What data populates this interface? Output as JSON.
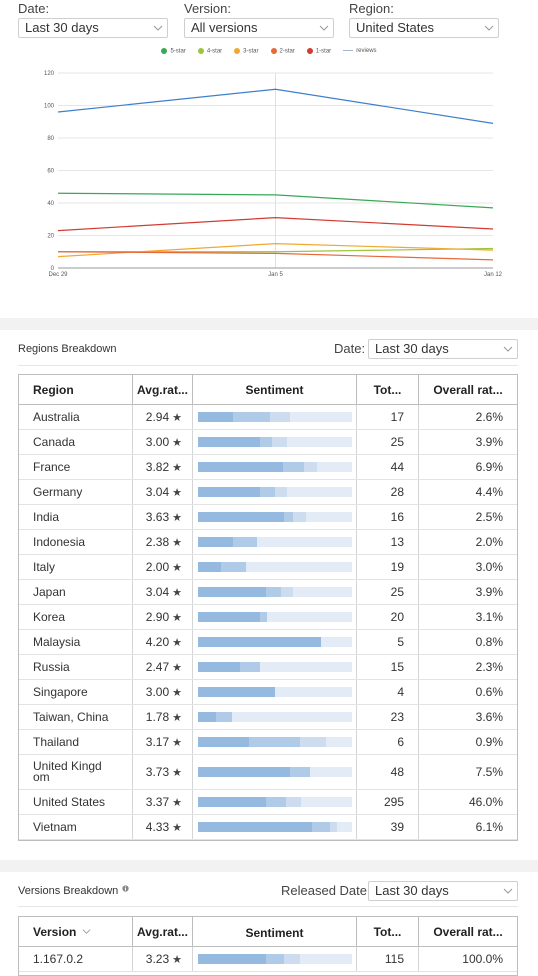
{
  "filters": {
    "date_label": "Date:",
    "date_value": "Last 30 days",
    "version_label": "Version:",
    "version_value": "All versions",
    "region_label": "Region:",
    "region_value": "United States"
  },
  "colors": {
    "s5": "#3aa757",
    "s4": "#9bc53d",
    "s3": "#f0a830",
    "s2": "#e8683a",
    "s1": "#d13b30",
    "reviews": "#3f7fc9"
  },
  "chart_data": {
    "type": "line",
    "x": [
      "Dec 29",
      "Jan 5",
      "Jan 12"
    ],
    "ylim": [
      0,
      120
    ],
    "yticks": [
      0,
      20,
      40,
      60,
      80,
      100,
      120
    ],
    "legend_position": "top",
    "grid": true,
    "series": [
      {
        "name": "5-star",
        "color": "#3aa757",
        "values": [
          46,
          45,
          37
        ]
      },
      {
        "name": "4-star",
        "color": "#9bc53d",
        "values": [
          10,
          10,
          12
        ]
      },
      {
        "name": "3-star",
        "color": "#f0a830",
        "values": [
          7,
          15,
          11
        ]
      },
      {
        "name": "2-star",
        "color": "#e8683a",
        "values": [
          10,
          9,
          5
        ]
      },
      {
        "name": "1-star",
        "color": "#d13b30",
        "values": [
          23,
          31,
          24
        ]
      },
      {
        "name": "reviews",
        "color": "#3f7fc9",
        "values": [
          96,
          110,
          89
        ]
      }
    ]
  },
  "regions": {
    "title": "Regions Breakdown",
    "date_label": "Date:",
    "date_value": "Last 30 days",
    "headers": {
      "region": "Region",
      "avg": "Avg.rat...",
      "sentiment": "Sentiment",
      "total": "Tot...",
      "overall": "Overall rat..."
    },
    "star": "★",
    "rows": [
      {
        "region": "Australia",
        "avg": "2.94",
        "total": "17",
        "overall": "2.6%",
        "sent": [
          0.23,
          0.24,
          0.13
        ]
      },
      {
        "region": "Canada",
        "avg": "3.00",
        "total": "25",
        "overall": "3.9%",
        "sent": [
          0.4,
          0.08,
          0.1
        ]
      },
      {
        "region": "France",
        "avg": "3.82",
        "total": "44",
        "overall": "6.9%",
        "sent": [
          0.55,
          0.14,
          0.08
        ]
      },
      {
        "region": "Germany",
        "avg": "3.04",
        "total": "28",
        "overall": "4.4%",
        "sent": [
          0.4,
          0.1,
          0.08
        ]
      },
      {
        "region": "India",
        "avg": "3.63",
        "total": "16",
        "overall": "2.5%",
        "sent": [
          0.56,
          0.06,
          0.08
        ]
      },
      {
        "region": "Indonesia",
        "avg": "2.38",
        "total": "13",
        "overall": "2.0%",
        "sent": [
          0.23,
          0.15,
          0.0
        ]
      },
      {
        "region": "Italy",
        "avg": "2.00",
        "total": "19",
        "overall": "3.0%",
        "sent": [
          0.15,
          0.16,
          0.0
        ]
      },
      {
        "region": "Japan",
        "avg": "3.04",
        "total": "25",
        "overall": "3.9%",
        "sent": [
          0.44,
          0.1,
          0.08
        ]
      },
      {
        "region": "Korea",
        "avg": "2.90",
        "total": "20",
        "overall": "3.1%",
        "sent": [
          0.4,
          0.05,
          0.0
        ]
      },
      {
        "region": "Malaysia",
        "avg": "4.20",
        "total": "5",
        "overall": "0.8%",
        "sent": [
          0.8,
          0.0,
          0.0
        ]
      },
      {
        "region": "Russia",
        "avg": "2.47",
        "total": "15",
        "overall": "2.3%",
        "sent": [
          0.27,
          0.13,
          0.0
        ]
      },
      {
        "region": "Singapore",
        "avg": "3.00",
        "total": "4",
        "overall": "0.6%",
        "sent": [
          0.5,
          0.0,
          0.0
        ]
      },
      {
        "region": "Taiwan, China",
        "avg": "1.78",
        "total": "23",
        "overall": "3.6%",
        "sent": [
          0.12,
          0.1,
          0.0
        ]
      },
      {
        "region": "Thailand",
        "avg": "3.17",
        "total": "6",
        "overall": "0.9%",
        "sent": [
          0.33,
          0.33,
          0.17
        ]
      },
      {
        "region": "United Kingd om",
        "avg": "3.73",
        "total": "48",
        "overall": "7.5%",
        "sent": [
          0.6,
          0.13,
          0.0
        ]
      },
      {
        "region": "United States",
        "avg": "3.37",
        "total": "295",
        "overall": "46.0%",
        "sent": [
          0.44,
          0.13,
          0.1
        ]
      },
      {
        "region": "Vietnam",
        "avg": "4.33",
        "total": "39",
        "overall": "6.1%",
        "sent": [
          0.74,
          0.12,
          0.04
        ]
      }
    ]
  },
  "versions": {
    "title": "Versions Breakdown",
    "date_label": "Released Date:",
    "date_value": "Last 30 days",
    "headers": {
      "version": "Version",
      "avg": "Avg.rat...",
      "sentiment": "Sentiment",
      "total": "Tot...",
      "overall": "Overall rat..."
    },
    "rows": [
      {
        "version": "1.167.0.2",
        "avg": "3.23",
        "total": "115",
        "overall": "100.0%",
        "sent": [
          0.44,
          0.12,
          0.1
        ]
      }
    ]
  }
}
